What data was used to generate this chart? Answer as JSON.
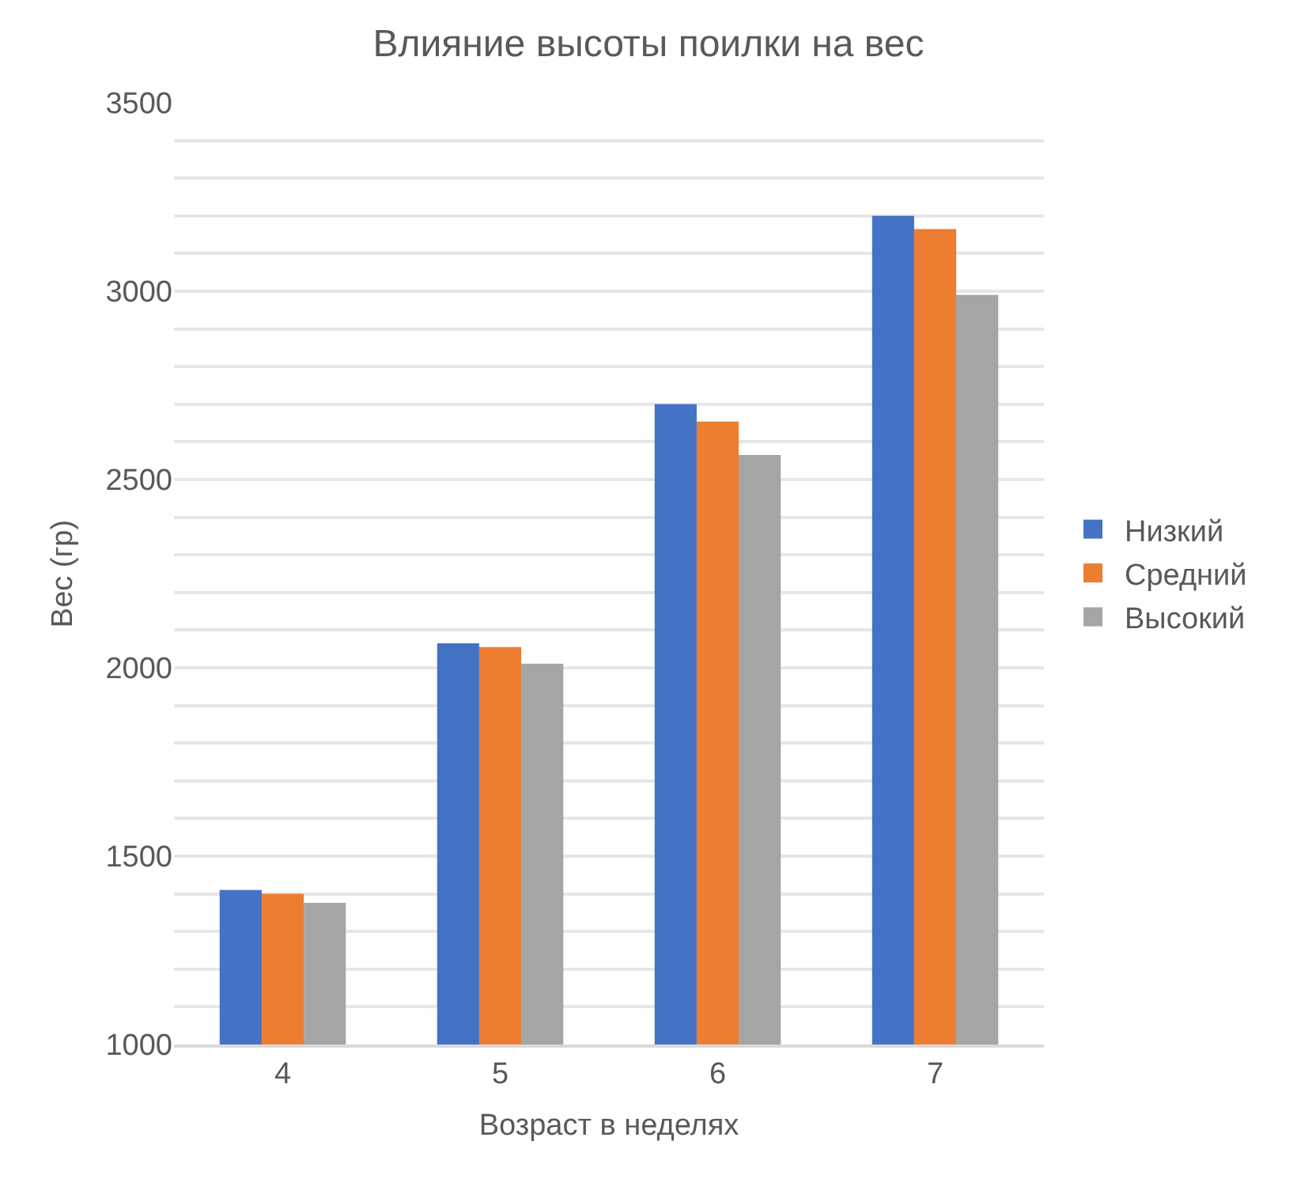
{
  "chart_data": {
    "type": "bar",
    "title": "Влияние высоты поилки на вес",
    "xlabel": "Возраст в неделях",
    "ylabel": "Вес (гр)",
    "categories": [
      "4",
      "5",
      "6",
      "7"
    ],
    "series": [
      {
        "name": "Низкий",
        "color": "#4472c4",
        "values": [
          1410,
          2065,
          2700,
          3200
        ]
      },
      {
        "name": "Средний",
        "color": "#ed7d31",
        "values": [
          1400,
          2055,
          2654,
          3165
        ]
      },
      {
        "name": "Высокий",
        "color": "#a5a5a5",
        "values": [
          1376,
          2011,
          2565,
          2990
        ]
      }
    ],
    "ylim": [
      1000,
      3500
    ],
    "yticks": [
      1000,
      {
        "value": 1100,
        "label": null
      },
      {
        "value": 1200,
        "label": null
      },
      {
        "value": 1300,
        "label": null
      },
      {
        "value": 1400,
        "label": null
      },
      1500,
      {
        "value": 1600,
        "label": null
      },
      {
        "value": 1700,
        "label": null
      },
      {
        "value": 1800,
        "label": null
      },
      {
        "value": 1900,
        "label": null
      },
      2000,
      {
        "value": 2100,
        "label": null
      },
      {
        "value": 2200,
        "label": null
      },
      {
        "value": 2300,
        "label": null
      },
      {
        "value": 2400,
        "label": null
      },
      2500,
      {
        "value": 2600,
        "label": null
      },
      {
        "value": 2700,
        "label": null
      },
      {
        "value": 2800,
        "label": null
      },
      {
        "value": 2900,
        "label": null
      },
      3000,
      {
        "value": 3100,
        "label": null
      },
      {
        "value": 3200,
        "label": null
      },
      {
        "value": 3300,
        "label": null
      },
      {
        "value": 3400,
        "label": null
      },
      3500
    ],
    "grid": "y",
    "legend": "right"
  }
}
